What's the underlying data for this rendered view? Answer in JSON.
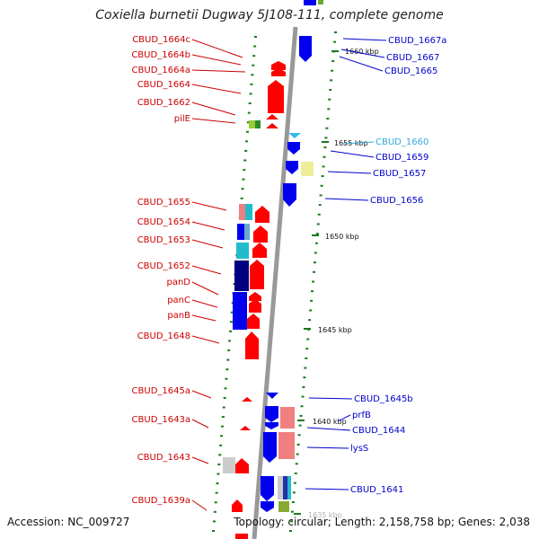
{
  "title": "Coxiella burnetii Dugway 5J108-111, complete genome",
  "footer": {
    "accession": "Accession: NC_009727",
    "topology": "Topology: circular; Length: 2,158,758 bp; Genes: 2,038"
  },
  "kbp_labels": [
    "1660 kbp",
    "1655 kbp",
    "1650 kbp",
    "1645 kbp",
    "1640 kbp",
    "1635 kbp"
  ],
  "left_genes": [
    "CBUD_1664c",
    "CBUD_1664b",
    "CBUD_1664a",
    "CBUD_1664",
    "CBUD_1662",
    "pilE",
    "CBUD_1655",
    "CBUD_1654",
    "CBUD_1653",
    "CBUD_1652",
    "panD",
    "panC",
    "panB",
    "CBUD_1648",
    "CBUD_1645a",
    "CBUD_1643a",
    "CBUD_1643",
    "CBUD_1639a"
  ],
  "right_genes": [
    "CBUD_1667a",
    "CBUD_1667",
    "CBUD_1665",
    "CBUD_1660",
    "CBUD_1659",
    "CBUD_1657",
    "CBUD_1656",
    "CBUD_1645b",
    "prfB",
    "CBUD_1644",
    "lysS",
    "CBUD_1641"
  ],
  "colors": {
    "forward_label": "#cc0000",
    "reverse_label": "#0000cc",
    "highlight_label": "#33aadd",
    "forward_strand": "#ff0000",
    "reverse_strand": "#0000ee",
    "backbone": "#999999",
    "tick": "#1a7a1a"
  }
}
